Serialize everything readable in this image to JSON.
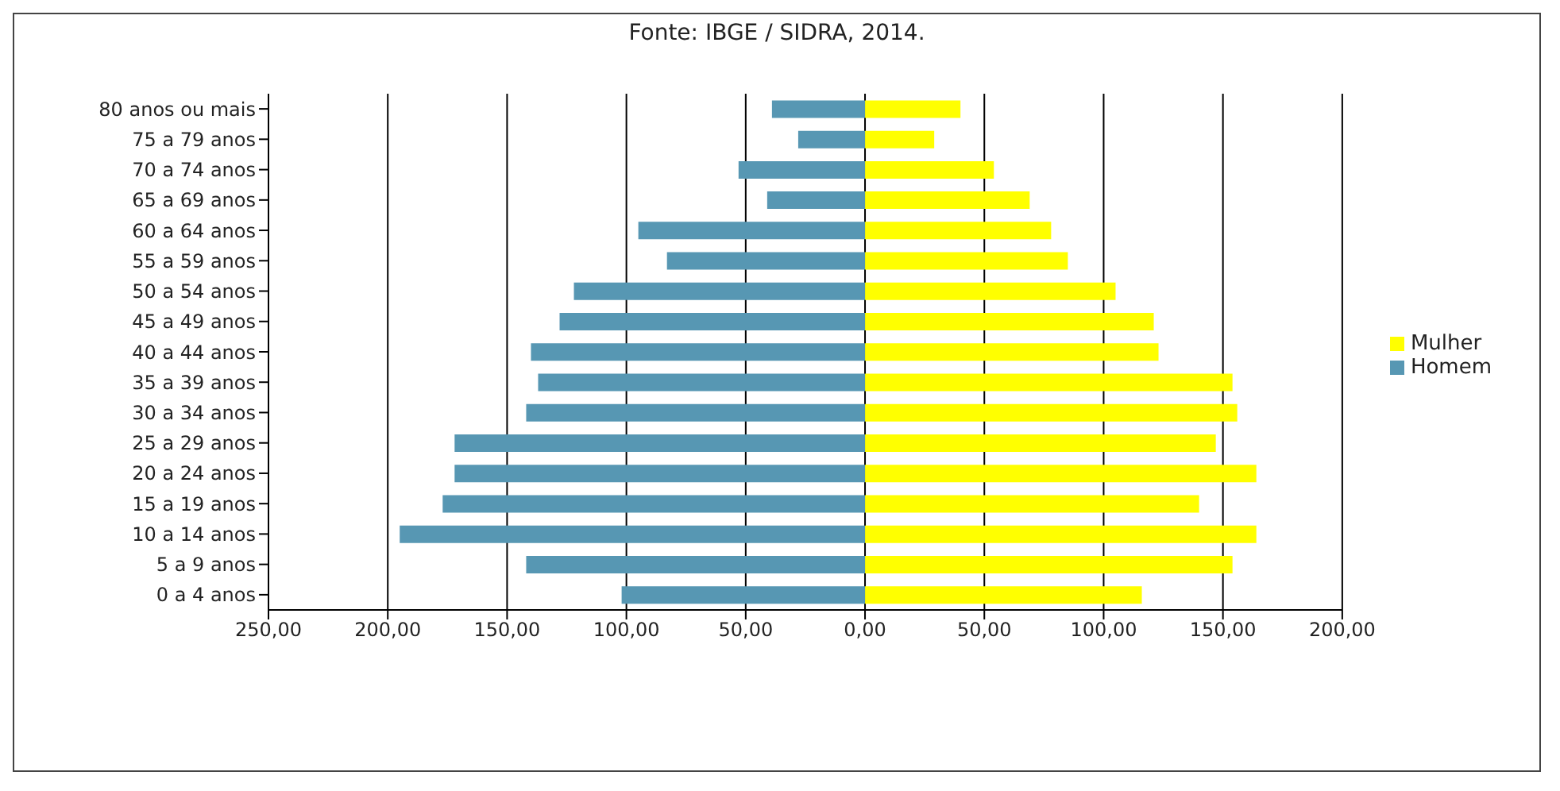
{
  "chart_data": {
    "type": "bar",
    "orientation": "horizontal",
    "stacked": true,
    "annotations": [
      "Fonte: IBGE / SIDRA, 2014."
    ],
    "categories": [
      "80 anos ou mais",
      "75 a 79 anos",
      "70 a 74 anos",
      "65 a 69 anos",
      "60 a 64 anos",
      "55 a 59 anos",
      "50 a 54 anos",
      "45 a 49 anos",
      "40 a 44 anos",
      "35 a 39 anos",
      "30 a 34 anos",
      "25 a 29 anos",
      "20 a 24 anos",
      "15 a 19 anos",
      "10 a 14 anos",
      "5 a 9 anos",
      "0 a 4 anos"
    ],
    "series": [
      {
        "name": "Mulher",
        "color": "#ffff00",
        "values": [
          40,
          29,
          54,
          69,
          78,
          85,
          105,
          121,
          123,
          154,
          156,
          147,
          164,
          140,
          164,
          154,
          116
        ]
      },
      {
        "name": "Homem",
        "color": "#5797b3",
        "values": [
          -39,
          -28,
          -53,
          -41,
          -95,
          -83,
          -122,
          -128,
          -140,
          -137,
          -142,
          -172,
          -172,
          -177,
          -195,
          -142,
          -102
        ]
      }
    ],
    "xlim": [
      -250,
      200
    ],
    "xticks": [
      {
        "value": -250,
        "label": "250,00"
      },
      {
        "value": -200,
        "label": "200,00"
      },
      {
        "value": -150,
        "label": "150,00"
      },
      {
        "value": -100,
        "label": "100,00"
      },
      {
        "value": -50,
        "label": "50,00"
      },
      {
        "value": 0,
        "label": "0,00"
      },
      {
        "value": 50,
        "label": "50,00"
      },
      {
        "value": 100,
        "label": "100,00"
      },
      {
        "value": 150,
        "label": "150,00"
      },
      {
        "value": 200,
        "label": "200,00"
      }
    ],
    "grid": "x",
    "legend": "right"
  }
}
